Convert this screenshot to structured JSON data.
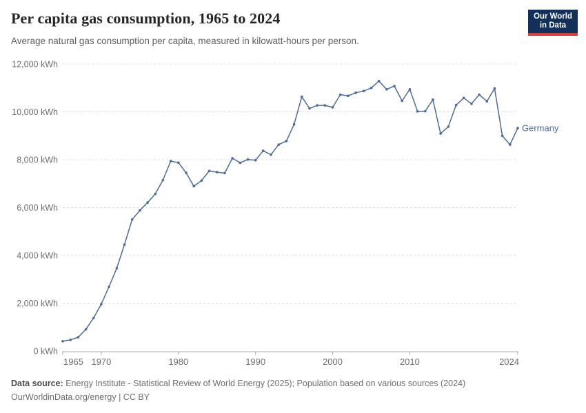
{
  "header": {
    "title": "Per capita gas consumption, 1965 to 2024",
    "subtitle": "Average natural gas consumption per capita, measured in kilowatt-hours per person."
  },
  "logo": {
    "line1": "Our World",
    "line2": "in Data",
    "bg_color": "#12305b",
    "accent_color": "#dc3d33"
  },
  "chart_data": {
    "type": "line",
    "title": "Per capita gas consumption, 1965 to 2024",
    "xlabel": "",
    "ylabel": "kWh",
    "xlim": [
      1965,
      2024
    ],
    "ylim": [
      0,
      12000
    ],
    "grid": "horizontal-dashed",
    "legend_position": "end-of-line-label",
    "line_color": "#4c6a9c",
    "x_ticks": [
      1965,
      1970,
      1980,
      1990,
      2000,
      2010,
      2024
    ],
    "y_ticks": [
      0,
      2000,
      4000,
      6000,
      8000,
      10000,
      12000
    ],
    "y_tick_unit": " kWh",
    "x": [
      1965,
      1966,
      1967,
      1968,
      1969,
      1970,
      1971,
      1972,
      1973,
      1974,
      1975,
      1976,
      1977,
      1978,
      1979,
      1980,
      1981,
      1982,
      1983,
      1984,
      1985,
      1986,
      1987,
      1988,
      1989,
      1990,
      1991,
      1992,
      1993,
      1994,
      1995,
      1996,
      1997,
      1998,
      1999,
      2000,
      2001,
      2002,
      2003,
      2004,
      2005,
      2006,
      2007,
      2008,
      2009,
      2010,
      2011,
      2012,
      2013,
      2014,
      2015,
      2016,
      2017,
      2018,
      2019,
      2020,
      2021,
      2022,
      2023,
      2024
    ],
    "series": [
      {
        "name": "Germany",
        "values": [
          410,
          470,
          575,
          910,
          1380,
          1960,
          2690,
          3460,
          4450,
          5500,
          5880,
          6210,
          6570,
          7150,
          7940,
          7880,
          7450,
          6890,
          7130,
          7530,
          7480,
          7440,
          8060,
          7870,
          8010,
          7980,
          8370,
          8210,
          8630,
          8780,
          9480,
          10630,
          10140,
          10270,
          10270,
          10190,
          10720,
          10670,
          10800,
          10870,
          11000,
          11290,
          10940,
          11080,
          10460,
          10940,
          10020,
          10030,
          10510,
          9090,
          9380,
          10280,
          10580,
          10340,
          10720,
          10440,
          10980,
          9000,
          8630,
          9320
        ]
      }
    ]
  },
  "footer": {
    "source_label": "Data source:",
    "source_text": " Energy Institute - Statistical Review of World Energy (2025); Population based on various sources (2024)",
    "license_line": "OurWorldinData.org/energy | CC BY"
  }
}
